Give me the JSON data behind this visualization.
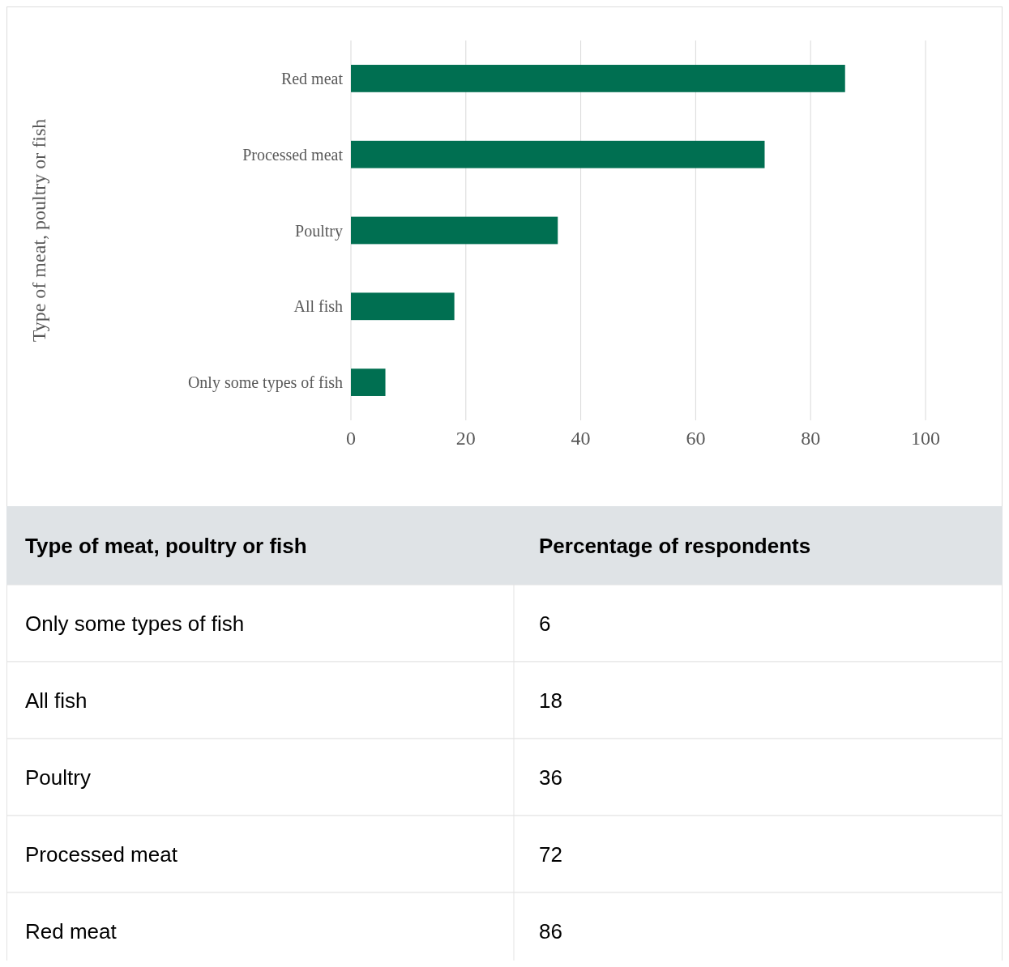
{
  "chart_data": [
    {
      "type": "bar",
      "orientation": "horizontal",
      "ylabel": "Type of meat, poultry or fish",
      "categories": [
        "Red meat",
        "Processed meat",
        "Poultry",
        "All fish",
        "Only some types of fish"
      ],
      "values": [
        86,
        72,
        36,
        18,
        6
      ],
      "color": "#006f51",
      "xlim": [
        0,
        100
      ],
      "xticks": [
        0,
        20,
        40,
        60,
        80,
        100
      ],
      "grid": "x"
    },
    {
      "type": "other",
      "annotations": [
        "Type of meat, poultry or fish",
        "Percentage of respondents"
      ],
      "categories": [
        "Only some types of fish",
        "All fish",
        "Poultry",
        "Processed meat",
        "Red meat"
      ],
      "values": [
        6,
        18,
        36,
        72,
        86
      ],
      "data_labels": true
    }
  ]
}
